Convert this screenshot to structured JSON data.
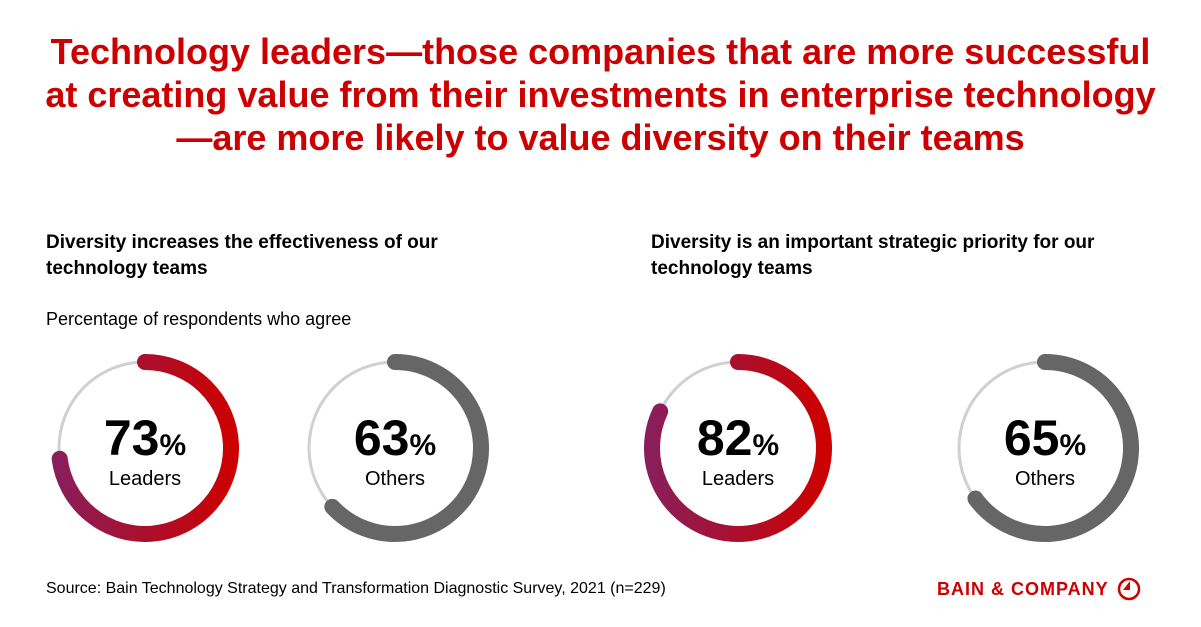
{
  "title": "Technology leaders—those companies that are more successful at creating value from their investments in enterprise technology—are more likely to value diversity on their teams",
  "note": "Percentage of respondents who agree",
  "source": "Source: Bain Technology Strategy and Transformation Diagnostic Survey, 2021 (n=229)",
  "logo": "BAIN & COMPANY",
  "colors": {
    "accent": "#cc0000",
    "leaders_gradient_start": "#8a1e5a",
    "leaders_gradient_end": "#cc0000",
    "others": "#666666",
    "track": "#d0d0d0"
  },
  "chart_data": [
    {
      "type": "pie",
      "title": "Diversity increases the effectiveness of our technology teams",
      "series": [
        {
          "name": "Leaders",
          "value": 73
        },
        {
          "name": "Others",
          "value": 63
        }
      ],
      "unit": "%"
    },
    {
      "type": "pie",
      "title": "Diversity is an important strategic priority for our technology teams",
      "series": [
        {
          "name": "Leaders",
          "value": 82
        },
        {
          "name": "Others",
          "value": 65
        }
      ],
      "unit": "%"
    }
  ]
}
